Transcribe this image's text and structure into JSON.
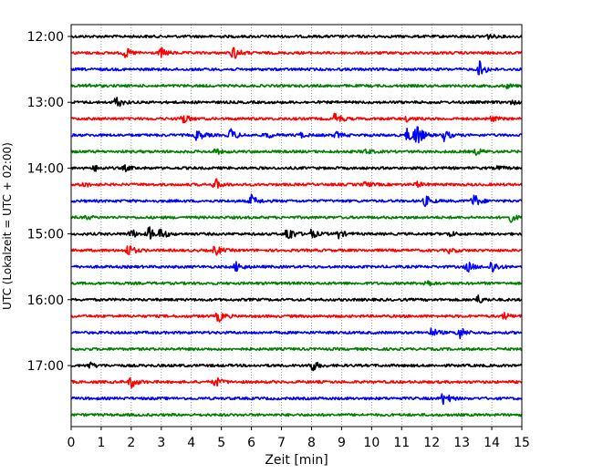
{
  "chart_data": {
    "type": "line",
    "title": "",
    "xlabel": "Zeit  [min]",
    "ylabel": "UTC (Lokalzeit = UTC + 02:00)",
    "xlim": [
      0,
      15
    ],
    "x_ticks": [
      0,
      1,
      2,
      3,
      4,
      5,
      6,
      7,
      8,
      9,
      10,
      11,
      12,
      13,
      14,
      15
    ],
    "x_tick_labels": [
      "0",
      "1",
      "2",
      "3",
      "4",
      "5",
      "6",
      "7",
      "8",
      "9",
      "10",
      "11",
      "12",
      "13",
      "14",
      "15"
    ],
    "y_tick_labels": [
      "12:00",
      "13:00",
      "14:00",
      "15:00",
      "16:00",
      "17:00"
    ],
    "start_time": "12:00",
    "trace_duration_min": 15,
    "vertical_grid": "dotted",
    "trace_colors": [
      "#000000",
      "#ff0000",
      "#0000ff",
      "#008000"
    ],
    "traces": [
      {
        "start": "12:00",
        "color": "#000000",
        "events": [
          {
            "t": 13.8,
            "amp": 0.25
          }
        ]
      },
      {
        "start": "12:15",
        "color": "#ff0000",
        "events": [
          {
            "t": 1.8,
            "amp": 0.4
          },
          {
            "t": 3.0,
            "amp": 0.35
          },
          {
            "t": 5.4,
            "amp": 0.55
          }
        ]
      },
      {
        "start": "12:30",
        "color": "#0000ff",
        "events": [
          {
            "t": 13.6,
            "amp": 0.6
          }
        ]
      },
      {
        "start": "12:45",
        "color": "#008000",
        "events": [
          {
            "t": 0.5,
            "amp": 0.15
          },
          {
            "t": 14.5,
            "amp": 0.15
          }
        ]
      },
      {
        "start": "13:00",
        "color": "#000000",
        "events": [
          {
            "t": 1.5,
            "amp": 0.45
          },
          {
            "t": 14.7,
            "amp": 0.15
          }
        ]
      },
      {
        "start": "13:15",
        "color": "#ff0000",
        "events": [
          {
            "t": 3.7,
            "amp": 0.45
          },
          {
            "t": 8.8,
            "amp": 0.5
          },
          {
            "t": 11.2,
            "amp": 0.2
          },
          {
            "t": 14.0,
            "amp": 0.2
          }
        ]
      },
      {
        "start": "13:30",
        "color": "#0000ff",
        "events": [
          {
            "t": 4.2,
            "amp": 0.45
          },
          {
            "t": 5.3,
            "amp": 0.5
          },
          {
            "t": 6.5,
            "amp": 0.25
          },
          {
            "t": 7.6,
            "amp": 0.2
          },
          {
            "t": 8.8,
            "amp": 0.25
          },
          {
            "t": 11.2,
            "amp": 0.55
          },
          {
            "t": 11.5,
            "amp": 0.9
          },
          {
            "t": 12.4,
            "amp": 0.45
          }
        ]
      },
      {
        "start": "13:45",
        "color": "#008000",
        "events": [
          {
            "t": 4.8,
            "amp": 0.2
          },
          {
            "t": 9.8,
            "amp": 0.2
          },
          {
            "t": 13.5,
            "amp": 0.25
          }
        ]
      },
      {
        "start": "14:00",
        "color": "#000000",
        "events": [
          {
            "t": 0.8,
            "amp": 0.2
          },
          {
            "t": 1.8,
            "amp": 0.2
          },
          {
            "t": 14.2,
            "amp": 0.15
          }
        ]
      },
      {
        "start": "14:15",
        "color": "#ff0000",
        "events": [
          {
            "t": 0.4,
            "amp": 0.2
          },
          {
            "t": 4.8,
            "amp": 0.45
          },
          {
            "t": 9.8,
            "amp": 0.2
          },
          {
            "t": 11.5,
            "amp": 0.2
          }
        ]
      },
      {
        "start": "14:30",
        "color": "#0000ff",
        "events": [
          {
            "t": 6.0,
            "amp": 0.45
          },
          {
            "t": 11.8,
            "amp": 0.4
          },
          {
            "t": 13.4,
            "amp": 0.55
          }
        ]
      },
      {
        "start": "14:45",
        "color": "#008000",
        "events": [
          {
            "t": 0.5,
            "amp": 0.15
          },
          {
            "t": 14.6,
            "amp": 0.35
          }
        ]
      },
      {
        "start": "15:00",
        "color": "#000000",
        "events": [
          {
            "t": 2.0,
            "amp": 0.35
          },
          {
            "t": 2.6,
            "amp": 0.55
          },
          {
            "t": 3.0,
            "amp": 0.4
          },
          {
            "t": 7.2,
            "amp": 0.7
          },
          {
            "t": 8.0,
            "amp": 0.35
          },
          {
            "t": 8.9,
            "amp": 0.3
          },
          {
            "t": 12.6,
            "amp": 0.2
          }
        ]
      },
      {
        "start": "15:15",
        "color": "#ff0000",
        "events": [
          {
            "t": 1.9,
            "amp": 0.5
          },
          {
            "t": 4.8,
            "amp": 0.4
          },
          {
            "t": 12.6,
            "amp": 0.2
          }
        ]
      },
      {
        "start": "15:30",
        "color": "#0000ff",
        "events": [
          {
            "t": 5.5,
            "amp": 0.4
          },
          {
            "t": 13.2,
            "amp": 0.4
          },
          {
            "t": 14.0,
            "amp": 0.55
          }
        ]
      },
      {
        "start": "15:45",
        "color": "#008000",
        "events": [
          {
            "t": 11.8,
            "amp": 0.3
          }
        ]
      },
      {
        "start": "16:00",
        "color": "#000000",
        "events": [
          {
            "t": 13.5,
            "amp": 0.4
          }
        ]
      },
      {
        "start": "16:15",
        "color": "#ff0000",
        "events": [
          {
            "t": 4.9,
            "amp": 0.45
          },
          {
            "t": 14.4,
            "amp": 0.25
          }
        ]
      },
      {
        "start": "16:30",
        "color": "#0000ff",
        "events": [
          {
            "t": 12.0,
            "amp": 0.35
          },
          {
            "t": 12.9,
            "amp": 0.55
          }
        ]
      },
      {
        "start": "16:45",
        "color": "#008000",
        "events": []
      },
      {
        "start": "17:00",
        "color": "#000000",
        "events": [
          {
            "t": 0.6,
            "amp": 0.25
          },
          {
            "t": 8.0,
            "amp": 0.5
          }
        ]
      },
      {
        "start": "17:15",
        "color": "#ff0000",
        "events": [
          {
            "t": 2.0,
            "amp": 0.45
          },
          {
            "t": 4.8,
            "amp": 0.4
          }
        ]
      },
      {
        "start": "17:30",
        "color": "#0000ff",
        "events": [
          {
            "t": 12.4,
            "amp": 0.55
          }
        ]
      },
      {
        "start": "17:45",
        "color": "#008000",
        "events": []
      }
    ]
  }
}
